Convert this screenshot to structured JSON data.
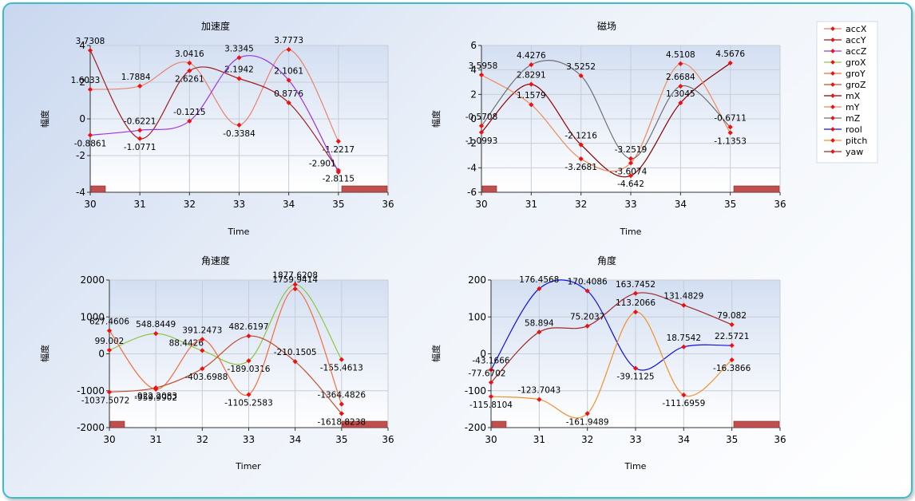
{
  "colors": {
    "accX": "#e8826e",
    "accY": "#9e1f23",
    "accZ": "#9a36e0",
    "groX": "#8cc63f",
    "groY": "#f36b3d",
    "groZ": "#c0502f",
    "mX": "#8b0000",
    "mY": "#f08a5a",
    "mZ": "#6f6f6f",
    "rool": "#1010e0",
    "pitch": "#f0922c",
    "yaw": "#9e2a2a",
    "point": "#ee1111",
    "scrollbar": "#c0504d"
  },
  "legend": [
    "accX",
    "accY",
    "accZ",
    "groX",
    "groY",
    "groZ",
    "mX",
    "mY",
    "mZ",
    "rool",
    "pitch",
    "yaw"
  ],
  "chart_data": [
    {
      "type": "line",
      "title": "加速度",
      "xlabel": "Time",
      "ylabel": "幅度",
      "xlim": [
        30,
        36
      ],
      "ylim": [
        -4,
        4
      ],
      "xticks": [
        "30",
        "31",
        "32",
        "33",
        "34",
        "35",
        "36"
      ],
      "yticks": [
        "4",
        "2",
        "0",
        "-2",
        "-4"
      ],
      "series": [
        {
          "name": "accX",
          "color_key": "accX",
          "x": [
            30,
            31,
            32,
            33,
            34,
            35
          ],
          "y": [
            1.6033,
            1.7884,
            3.0416,
            -0.3384,
            3.7773,
            -1.2217
          ],
          "labels": [
            "1.6033",
            "1.7884",
            "3.0416",
            "-0.3384",
            "3.7773",
            "-1.2217"
          ]
        },
        {
          "name": "accY",
          "color_key": "accY",
          "x": [
            30,
            31,
            32,
            33,
            34,
            35
          ],
          "y": [
            3.7308,
            -1.0771,
            2.6261,
            2.1942,
            0.8776,
            -2.8115
          ],
          "labels": [
            "3.7308",
            "-1.0771",
            "2.6261",
            "2.1942",
            "0.8776",
            "-2.8115"
          ]
        },
        {
          "name": "accZ",
          "color_key": "accZ",
          "x": [
            30,
            31,
            32,
            33,
            34,
            35
          ],
          "y": [
            -0.8861,
            -0.6221,
            -0.1215,
            3.3345,
            2.1061,
            -2.901
          ],
          "labels": [
            "-0.8861",
            "-0.6221",
            "-0.1215",
            "3.3345",
            "2.1061",
            "-2.901"
          ]
        }
      ]
    },
    {
      "type": "line",
      "title": "磁场",
      "xlabel": "Time",
      "ylabel": "幅度",
      "xlim": [
        30,
        36
      ],
      "ylim": [
        -6,
        6
      ],
      "xticks": [
        "30",
        "31",
        "32",
        "33",
        "34",
        "35",
        "36"
      ],
      "yticks": [
        "6",
        "4",
        "2",
        "0",
        "-2",
        "-4",
        "-6"
      ],
      "series": [
        {
          "name": "mX",
          "color_key": "mX",
          "x": [
            30,
            31,
            32,
            33,
            34,
            35
          ],
          "y": [
            -1.0993,
            2.8291,
            -2.1216,
            -4.642,
            1.3045,
            4.5676
          ],
          "labels": [
            "-1.0993",
            "2.8291",
            "-2.1216",
            "-4.642",
            "1.3045",
            "4.5676"
          ]
        },
        {
          "name": "mY",
          "color_key": "mY",
          "x": [
            30,
            31,
            32,
            33,
            34,
            35
          ],
          "y": [
            3.5958,
            1.1579,
            -3.2681,
            -3.6074,
            4.5108,
            -1.1353
          ],
          "labels": [
            "3.5958",
            "1.1579",
            "-3.2681",
            "-3.6074",
            "4.5108",
            "-1.1353"
          ]
        },
        {
          "name": "mZ",
          "color_key": "mZ",
          "x": [
            30,
            31,
            32,
            33,
            34,
            35
          ],
          "y": [
            -0.5708,
            4.4276,
            3.5252,
            -3.2519,
            2.6684,
            -0.6711
          ],
          "labels": [
            "-0.5708",
            "4.4276",
            "3.5252",
            "-3.2519",
            "2.6684",
            "-0.6711"
          ]
        }
      ]
    },
    {
      "type": "line",
      "title": "角速度",
      "xlabel": "Timer",
      "ylabel": "幅度",
      "xlim": [
        30,
        36
      ],
      "ylim": [
        -2000,
        2000
      ],
      "xticks": [
        "30",
        "31",
        "32",
        "33",
        "34",
        "35",
        "36"
      ],
      "yticks": [
        "2000",
        "1000",
        "0",
        "-1000",
        "-2000"
      ],
      "series": [
        {
          "name": "groX",
          "color_key": "groX",
          "x": [
            30,
            31,
            32,
            33,
            34,
            35
          ],
          "y": [
            99.002,
            548.8449,
            88.4426,
            -189.0316,
            1877.6208,
            -155.4613
          ],
          "labels": [
            "99.002",
            "548.8449",
            "88.4426",
            "-189.0316",
            "1877.6208",
            "-155.4613"
          ]
        },
        {
          "name": "groY",
          "color_key": "groY",
          "x": [
            30,
            31,
            32,
            33,
            34,
            35
          ],
          "y": [
            627.4606,
            -959.9902,
            391.2473,
            -1105.2583,
            1759.9414,
            -1364.4826
          ],
          "labels": [
            "627.4606",
            "-959.9902",
            "391.2473",
            "-1105.2583",
            "1759.9414",
            "-1364.4826"
          ]
        },
        {
          "name": "groZ",
          "color_key": "groZ",
          "x": [
            30,
            31,
            32,
            33,
            34,
            35
          ],
          "y": [
            -1037.5072,
            -922.2083,
            -403.6988,
            482.6197,
            -210.1505,
            -1618.8238
          ],
          "labels": [
            "-1037.5072",
            "-922.2083",
            "-403.6988",
            "482.6197",
            "-210.1505",
            "-1618.8238"
          ]
        }
      ]
    },
    {
      "type": "line",
      "title": "角度",
      "xlabel": "Time",
      "ylabel": "幅度",
      "xlim": [
        30,
        36
      ],
      "ylim": [
        -200,
        200
      ],
      "xticks": [
        "30",
        "31",
        "32",
        "33",
        "34",
        "35",
        "36"
      ],
      "yticks": [
        "200",
        "100",
        "0",
        "-100",
        "-200"
      ],
      "series": [
        {
          "name": "rool",
          "color_key": "rool",
          "x": [
            30,
            31,
            32,
            33,
            34,
            35
          ],
          "y": [
            -43.1666,
            176.4568,
            170.4086,
            -39.1125,
            18.7542,
            22.5721
          ],
          "labels": [
            "-43.1666",
            "176.4568",
            "170.4086",
            "-39.1125",
            "18.7542",
            "22.5721"
          ]
        },
        {
          "name": "pitch",
          "color_key": "pitch",
          "x": [
            30,
            31,
            32,
            33,
            34,
            35
          ],
          "y": [
            -115.8104,
            -123.7043,
            -161.9489,
            113.2066,
            -111.6959,
            -16.3866
          ],
          "labels": [
            "-115.8104",
            "-123.7043",
            "-161.9489",
            "113.2066",
            "-111.6959",
            "-16.3866"
          ]
        },
        {
          "name": "yaw",
          "color_key": "yaw",
          "x": [
            30,
            31,
            32,
            33,
            34,
            35
          ],
          "y": [
            -77.6702,
            58.894,
            75.2037,
            163.7452,
            131.4829,
            79.082
          ],
          "labels": [
            "-77.6702",
            "58.894",
            "75.2037",
            "163.7452",
            "131.4829",
            "79.082"
          ]
        }
      ]
    }
  ]
}
